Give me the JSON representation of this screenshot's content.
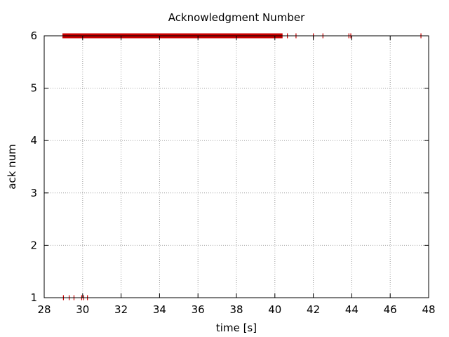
{
  "chart_data": {
    "type": "scatter",
    "title": "Acknowledgment Number",
    "xlabel": "time [s]",
    "ylabel": "ack num",
    "xlim": [
      28,
      48
    ],
    "ylim": [
      1,
      6
    ],
    "x_ticks": [
      "28",
      "30",
      "32",
      "34",
      "36",
      "38",
      "40",
      "42",
      "44",
      "46",
      "48"
    ],
    "y_ticks": [
      "1",
      "2",
      "3",
      "4",
      "5",
      "6"
    ],
    "grid": true,
    "grid_style": "dotted",
    "marker": "vertical-tick",
    "color": "#cc0000",
    "dense_band": {
      "y": 6,
      "x_from": 28.95,
      "x_to": 40.4
    },
    "points": [
      {
        "x": 29.0,
        "y": 1
      },
      {
        "x": 29.3,
        "y": 1
      },
      {
        "x": 29.55,
        "y": 1
      },
      {
        "x": 29.95,
        "y": 1
      },
      {
        "x": 30.05,
        "y": 1
      },
      {
        "x": 30.25,
        "y": 1
      },
      {
        "x": 40.65,
        "y": 6
      },
      {
        "x": 41.1,
        "y": 6
      },
      {
        "x": 42.0,
        "y": 6
      },
      {
        "x": 42.5,
        "y": 6
      },
      {
        "x": 43.85,
        "y": 6
      },
      {
        "x": 43.95,
        "y": 6
      },
      {
        "x": 47.6,
        "y": 6
      }
    ]
  }
}
